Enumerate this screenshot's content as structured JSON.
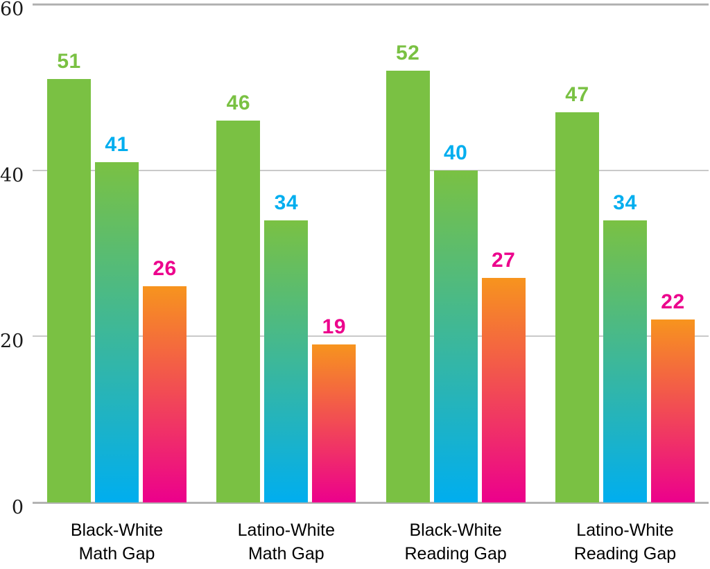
{
  "chart_data": {
    "type": "bar",
    "title": "",
    "xlabel": "",
    "ylabel": "",
    "ylim": [
      0,
      60
    ],
    "yticks": [
      0,
      20,
      40,
      60
    ],
    "grid": true,
    "legend": false,
    "categories": [
      {
        "line1": "Black-White",
        "line2": "Math Gap"
      },
      {
        "line1": "Latino-White",
        "line2": "Math Gap"
      },
      {
        "line1": "Black-White",
        "line2": "Reading Gap"
      },
      {
        "line1": "Latino-White",
        "line2": "Reading Gap"
      }
    ],
    "series": [
      {
        "values": [
          51,
          46,
          52,
          47
        ],
        "bar_color_top": "#7AC143",
        "bar_color_bottom": "#7AC143",
        "label_color": "#7AC143"
      },
      {
        "values": [
          41,
          34,
          40,
          34
        ],
        "bar_color_top": "#7AC143",
        "bar_color_bottom": "#00AEEF",
        "label_color": "#00AEEF"
      },
      {
        "values": [
          26,
          19,
          27,
          22
        ],
        "bar_color_top": "#F7941E",
        "bar_color_bottom": "#EC008C",
        "label_color": "#EC008C"
      }
    ],
    "colors": {
      "gridline_minor": "#C9C9C9",
      "gridline_major": "#B3B3B3",
      "tick_text": "#1A1A1A",
      "category_text": "#000000",
      "background": "#FFFFFF"
    }
  }
}
